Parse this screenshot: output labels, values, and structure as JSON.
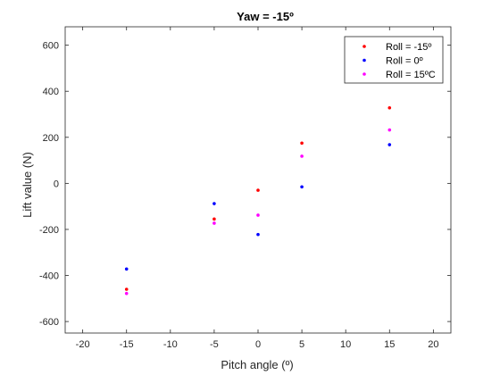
{
  "chart_data": {
    "type": "scatter",
    "title": "Yaw = -15º",
    "xlabel": "Pitch angle (º)",
    "ylabel": "Lift value (N)",
    "xlim": [
      -22,
      22
    ],
    "ylim": [
      -650,
      680
    ],
    "xticks": [
      -20,
      -15,
      -10,
      -5,
      0,
      5,
      10,
      15,
      20
    ],
    "yticks": [
      -600,
      -400,
      -200,
      0,
      200,
      400,
      600
    ],
    "xtick_labels": [
      "-20",
      "-15",
      "-10",
      "-5",
      "0",
      "5",
      "10",
      "15",
      "20"
    ],
    "ytick_labels": [
      "-600",
      "-400",
      "-200",
      "0",
      "200",
      "400",
      "600"
    ],
    "grid": false,
    "legend_position": "top-right",
    "series": [
      {
        "name": "Roll = -15º",
        "color": "#ff0000",
        "x": [
          -15,
          -5,
          0,
          5,
          15
        ],
        "y": [
          -460,
          -155,
          -30,
          175,
          328
        ]
      },
      {
        "name": "Roll = 0º",
        "color": "#0000ff",
        "x": [
          -15,
          -5,
          0,
          5,
          15
        ],
        "y": [
          -372,
          -88,
          -222,
          -15,
          168
        ]
      },
      {
        "name": "Roll = 15ºC",
        "color": "#ff00ff",
        "x": [
          -15,
          -5,
          0,
          5,
          15
        ],
        "y": [
          -478,
          -173,
          -138,
          118,
          232
        ]
      }
    ]
  }
}
